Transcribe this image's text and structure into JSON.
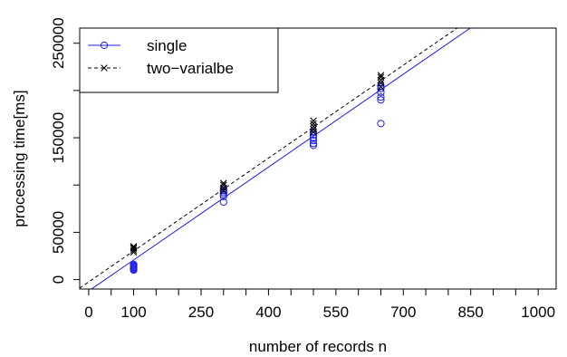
{
  "chart_data": {
    "type": "scatter",
    "xlabel": "number of records n",
    "ylabel": "processing time[ms]",
    "xlim": [
      -20,
      1040
    ],
    "ylim": [
      -10000,
      266000
    ],
    "x_ticks": [
      0,
      50,
      100,
      150,
      200,
      250,
      300,
      350,
      400,
      450,
      500,
      550,
      600,
      650,
      700,
      750,
      800,
      850,
      900,
      950,
      1000
    ],
    "x_tick_labels": [
      {
        "value": 0,
        "label": "0"
      },
      {
        "value": 100,
        "label": "100"
      },
      {
        "value": 250,
        "label": "250"
      },
      {
        "value": 400,
        "label": "400"
      },
      {
        "value": 550,
        "label": "550"
      },
      {
        "value": 700,
        "label": "700"
      },
      {
        "value": 850,
        "label": "850"
      },
      {
        "value": 1000,
        "label": "1000"
      }
    ],
    "y_ticks": [
      0,
      50000,
      100000,
      150000,
      200000,
      250000
    ],
    "y_tick_labels": [
      {
        "value": 0,
        "label": "0"
      },
      {
        "value": 50000,
        "label": "50000"
      },
      {
        "value": 150000,
        "label": "150000"
      },
      {
        "value": 250000,
        "label": "250000"
      }
    ],
    "legend_position": "top-left",
    "grid": false,
    "series": [
      {
        "name": "single",
        "color": "#1f1fe6",
        "marker": "circle",
        "line_style": "solid",
        "points": [
          {
            "x": 100,
            "y": 10000
          },
          {
            "x": 100,
            "y": 11000
          },
          {
            "x": 100,
            "y": 12000
          },
          {
            "x": 100,
            "y": 13000
          },
          {
            "x": 100,
            "y": 14000
          },
          {
            "x": 100,
            "y": 15000
          },
          {
            "x": 100,
            "y": 16000
          },
          {
            "x": 300,
            "y": 82000
          },
          {
            "x": 300,
            "y": 88000
          },
          {
            "x": 300,
            "y": 90000
          },
          {
            "x": 300,
            "y": 92000
          },
          {
            "x": 300,
            "y": 94000
          },
          {
            "x": 300,
            "y": 96000
          },
          {
            "x": 500,
            "y": 142000
          },
          {
            "x": 500,
            "y": 144000
          },
          {
            "x": 500,
            "y": 147000
          },
          {
            "x": 500,
            "y": 150000
          },
          {
            "x": 500,
            "y": 153000
          },
          {
            "x": 500,
            "y": 156000
          },
          {
            "x": 650,
            "y": 165000
          },
          {
            "x": 650,
            "y": 190000
          },
          {
            "x": 650,
            "y": 193000
          },
          {
            "x": 650,
            "y": 198000
          },
          {
            "x": 650,
            "y": 202000
          },
          {
            "x": 650,
            "y": 205000
          }
        ],
        "fit_line": {
          "intercept": -12000,
          "slope": 327.5
        }
      },
      {
        "name": "two−varialbe",
        "color": "#000000",
        "marker": "x",
        "line_style": "dashed",
        "points": [
          {
            "x": 100,
            "y": 29000
          },
          {
            "x": 100,
            "y": 31000
          },
          {
            "x": 100,
            "y": 33000
          },
          {
            "x": 100,
            "y": 34000
          },
          {
            "x": 100,
            "y": 35000
          },
          {
            "x": 300,
            "y": 94000
          },
          {
            "x": 300,
            "y": 97000
          },
          {
            "x": 300,
            "y": 100000
          },
          {
            "x": 300,
            "y": 102000
          },
          {
            "x": 500,
            "y": 156000
          },
          {
            "x": 500,
            "y": 159000
          },
          {
            "x": 500,
            "y": 162000
          },
          {
            "x": 500,
            "y": 165000
          },
          {
            "x": 500,
            "y": 168000
          },
          {
            "x": 650,
            "y": 204000
          },
          {
            "x": 650,
            "y": 208000
          },
          {
            "x": 650,
            "y": 211000
          },
          {
            "x": 650,
            "y": 214000
          },
          {
            "x": 650,
            "y": 216000
          }
        ],
        "fit_line": {
          "intercept": -2500,
          "slope": 327.5
        }
      }
    ]
  }
}
